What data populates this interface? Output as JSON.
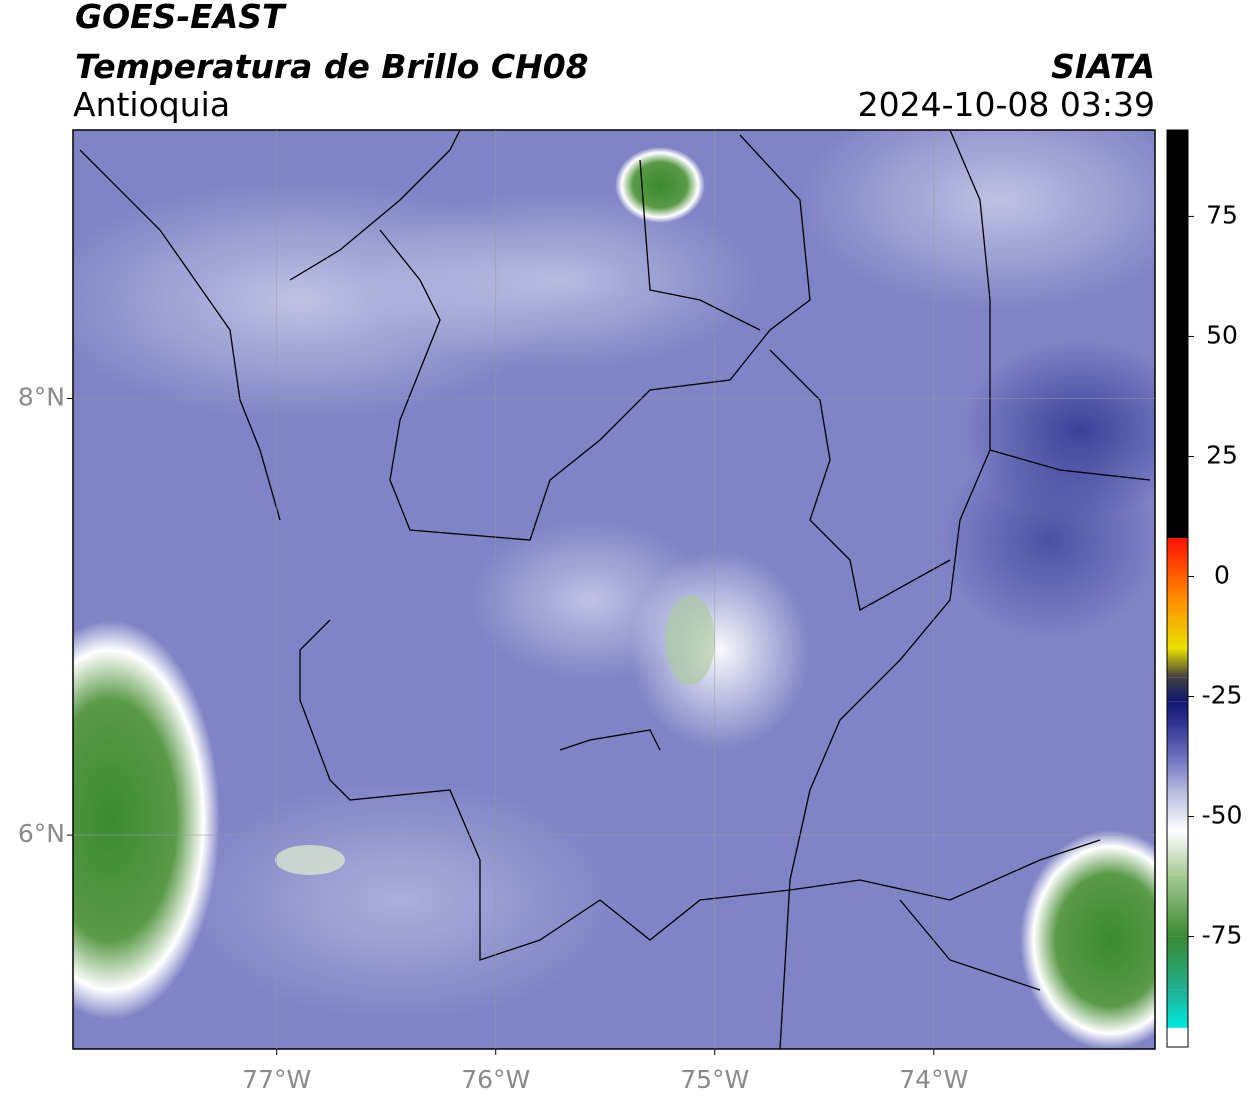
{
  "header": {
    "title": "GOES-EAST",
    "subtitle": "Temperatura de Brillo CH08",
    "region": "Antioquia",
    "source": "SIATA",
    "datetime": "2024-10-08 03:39"
  },
  "map": {
    "xlim": [
      -77.93,
      -72.99
    ],
    "ylim": [
      5.02,
      9.23
    ],
    "xticks": [
      {
        "value": -77,
        "label": "77°W"
      },
      {
        "value": -76,
        "label": "76°W"
      },
      {
        "value": -75,
        "label": "75°W"
      },
      {
        "value": -74,
        "label": "74°W"
      }
    ],
    "yticks": [
      {
        "value": 6,
        "label": "6°N"
      },
      {
        "value": 8,
        "label": "8°N"
      }
    ],
    "grid": true
  },
  "colorbar": {
    "lim": [
      -98,
      93
    ],
    "ticks": [
      75,
      50,
      25,
      0,
      -25,
      -50,
      -75
    ],
    "colormap": [
      {
        "value": -98,
        "color": "#ffffff"
      },
      {
        "value": -94,
        "color": "#ffffff"
      },
      {
        "value": -94,
        "color": "#00e8e0"
      },
      {
        "value": -86,
        "color": "#20b090"
      },
      {
        "value": -75,
        "color": "#3a8a30"
      },
      {
        "value": -62,
        "color": "#a8cc98"
      },
      {
        "value": -53,
        "color": "#ffffff"
      },
      {
        "value": -45,
        "color": "#b8bce0"
      },
      {
        "value": -38,
        "color": "#6f74c0"
      },
      {
        "value": -30,
        "color": "#2b2f8e"
      },
      {
        "value": -26,
        "color": "#101870"
      },
      {
        "value": -21,
        "color": "#404040"
      },
      {
        "value": -15,
        "color": "#e8e000"
      },
      {
        "value": -5,
        "color": "#ff9000"
      },
      {
        "value": 8,
        "color": "#ff1000"
      },
      {
        "value": 8,
        "color": "#000000"
      },
      {
        "value": 93,
        "color": "#000000"
      }
    ]
  }
}
